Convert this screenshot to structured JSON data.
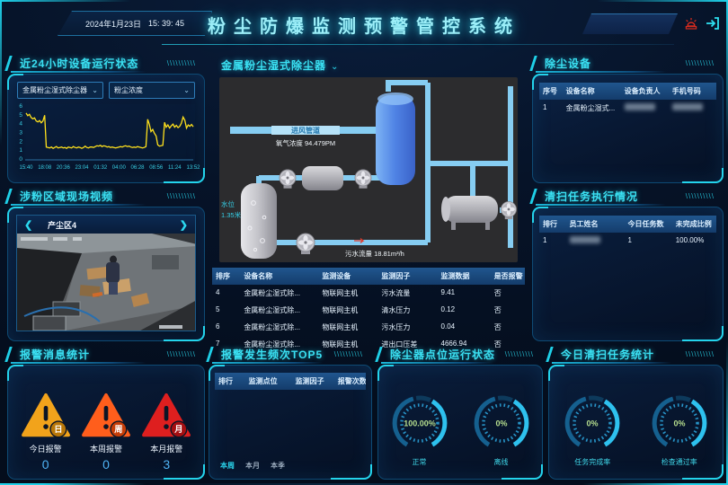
{
  "deco": {
    "slashes": "\\\\\\\\\\\\\\\\\\\\",
    "caret": "⌄",
    "prev_arrow": "❮",
    "next_arrow": "❯"
  },
  "colors": {
    "accent": "#2bd9f0",
    "chart_line": "#ffe11c",
    "gauge_value": "#b5dd8d",
    "alarm_value": "#4fb3f5",
    "siren_red": "#d92b1e"
  },
  "header": {
    "date": "2024年1月23日",
    "time": "15: 39: 45",
    "title": "粉尘防爆监测预警管控系统"
  },
  "panels": {
    "runtime": {
      "title": "近24小时设备运行状态",
      "device_select": "金属粉尘湿式除尘器",
      "factor_select": "粉尘浓度"
    },
    "video": {
      "title": "涉粉区域现场视频",
      "camera_label": "产尘区4"
    },
    "alarm_stats": {
      "title": "报警消息统计",
      "items": [
        {
          "badge": "日",
          "label": "今日报警",
          "value": "0",
          "color": "#f2a31b",
          "badge_color": "#b97708"
        },
        {
          "badge": "周",
          "label": "本周报警",
          "value": "0",
          "color": "#ff5e1c",
          "badge_color": "#c63d08"
        },
        {
          "badge": "月",
          "label": "本月报警",
          "value": "3",
          "color": "#de1f1f",
          "badge_color": "#a50f12"
        }
      ]
    },
    "scada": {
      "title": "金属粉尘湿式除尘器",
      "pipe_label": "进风管道",
      "gas_label": "氧气浓度 94.479PM",
      "water_level_label": "水位",
      "water_level_value": "1.35米",
      "flow_label": "污水流量 18.81m³/h",
      "table": {
        "headers": [
          "排序",
          "设备名称",
          "监测设备",
          "监测因子",
          "监测数据",
          "是否报警"
        ],
        "rows": [
          [
            "4",
            "金属粉尘湿式除...",
            "物联网主机",
            "污水流量",
            "9.41",
            "否"
          ],
          [
            "5",
            "金属粉尘湿式除...",
            "物联网主机",
            "清水压力",
            "0.12",
            "否"
          ],
          [
            "6",
            "金属粉尘湿式除...",
            "物联网主机",
            "污水压力",
            "0.04",
            "否"
          ],
          [
            "7",
            "金属粉尘湿式除...",
            "物联网主机",
            "进出口压差",
            "4666.94",
            "否"
          ]
        ]
      }
    },
    "top5": {
      "title": "报警发生频次TOP5",
      "table": {
        "headers": [
          "排行",
          "监测点位",
          "监测因子",
          "报警次数"
        ],
        "rows": []
      },
      "tabs": [
        "本周",
        "本月",
        "本季"
      ],
      "active_tab": "本周"
    },
    "collector": {
      "title": "除尘器点位运行状态",
      "gauges": [
        {
          "value": "100.00%",
          "label": "正常",
          "percent": 100
        },
        {
          "value": "0%",
          "label": "离线",
          "percent": 0
        }
      ]
    },
    "devices": {
      "title": "除尘设备",
      "table": {
        "headers": [
          "序号",
          "设备名称",
          "设备负责人",
          "手机号码"
        ],
        "rows": [
          [
            "1",
            "金属粉尘湿式...",
            null,
            null
          ]
        ]
      }
    },
    "cleaning": {
      "title": "清扫任务执行情况",
      "table": {
        "headers": [
          "排行",
          "员工姓名",
          "今日任务数",
          "未完成比例"
        ],
        "rows": [
          [
            "1",
            null,
            "1",
            "100.00%"
          ]
        ]
      }
    },
    "today": {
      "title": "今日清扫任务统计",
      "gauges": [
        {
          "value": "0%",
          "label": "任务完成率",
          "percent": 0
        },
        {
          "value": "0%",
          "label": "检查通过率",
          "percent": 0
        }
      ]
    }
  },
  "chart_data": {
    "type": "line",
    "title": "近24小时设备运行状态 - 粉尘浓度",
    "ylim": [
      0,
      6
    ],
    "yticks": [
      0,
      1,
      2,
      3,
      4,
      5,
      6
    ],
    "xticks": [
      "15:40",
      "18:08",
      "20:36",
      "23:04",
      "01:32",
      "04:00",
      "06:28",
      "08:56",
      "11:24",
      "13:52"
    ],
    "grid": false,
    "values": [
      5.2,
      4.9,
      5.05,
      4.7,
      4.55,
      4.65,
      4.3,
      4.2,
      4.35,
      4.1,
      4.3,
      4.95,
      1.35,
      1.3,
      1.25,
      1.35,
      1.2,
      1.3,
      1.4,
      1.25,
      1.3,
      1.35,
      1.25,
      1.3,
      1.2,
      1.35,
      1.3,
      1.25,
      1.4,
      1.3,
      1.25,
      1.35,
      1.3,
      1.2,
      1.3,
      1.45,
      1.3,
      1.25,
      1.35,
      1.35,
      1.3,
      1.4,
      1.5,
      1.45,
      1.55,
      1.4,
      1.5,
      1.45,
      1.35,
      1.4,
      1.3,
      1.35,
      1.3,
      1.25,
      1.3,
      1.35,
      1.4,
      1.35,
      1.45,
      1.5,
      1.4,
      1.45,
      1.35,
      1.3,
      1.35,
      1.3,
      1.4,
      1.35,
      1.3,
      1.25,
      1.3,
      1.4,
      4.5,
      3.9,
      3.1,
      3.35,
      2.9,
      2.6,
      1.6,
      1.45,
      1.5,
      1.55,
      4.15,
      3.6,
      3.85,
      3.5,
      3.75,
      3.95,
      3.6,
      3.8,
      3.55,
      3.7,
      4.05,
      4.75,
      4.4,
      3.5,
      3.85,
      3.7,
      3.9,
      3.65
    ]
  }
}
